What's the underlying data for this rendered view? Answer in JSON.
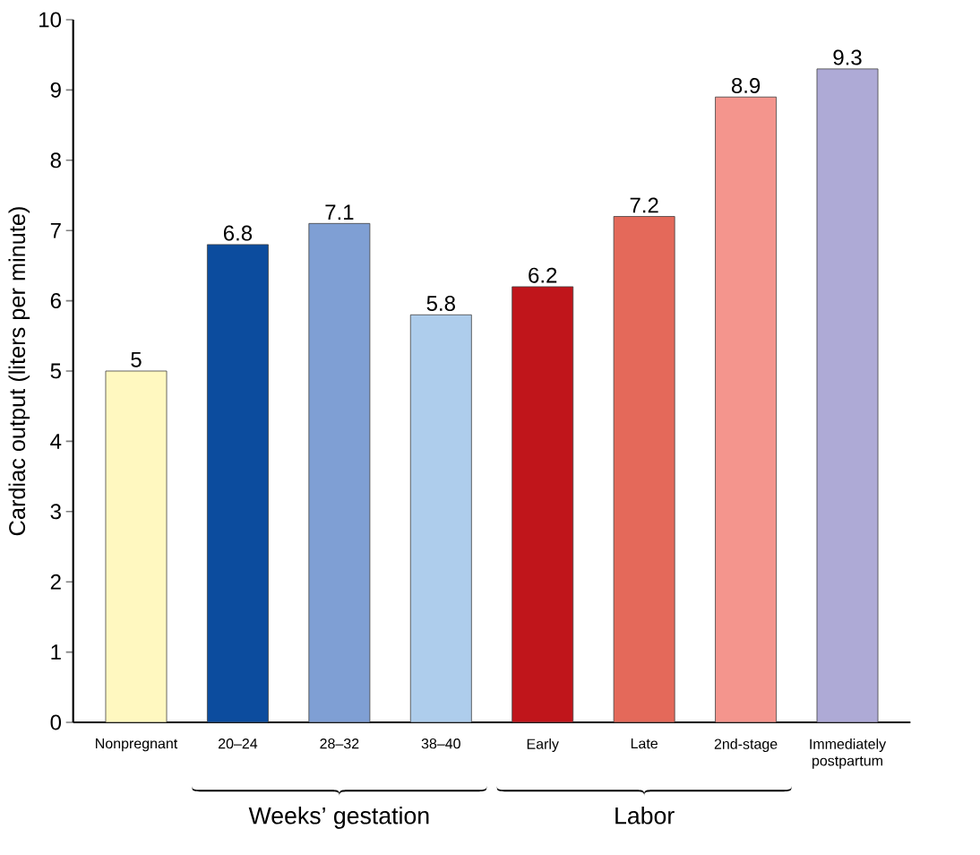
{
  "chart_data": {
    "type": "bar",
    "ylabel": "Cardiac output (liters per minute)",
    "categories": [
      "Nonpregnant",
      "20–24",
      "28–32",
      "38–40",
      "Early",
      "Late",
      "2nd-stage",
      "Immediately postpartum"
    ],
    "values": [
      5,
      6.8,
      7.1,
      5.8,
      6.2,
      7.2,
      8.9,
      9.3
    ],
    "colors": [
      "#fff8c0",
      "#0c4c9e",
      "#7f9fd4",
      "#aecdec",
      "#c0151b",
      "#e4695a",
      "#f4958d",
      "#aeaad6"
    ],
    "ylim": [
      0,
      10
    ],
    "yticks": [
      0,
      1,
      2,
      3,
      4,
      5,
      6,
      7,
      8,
      9,
      10
    ],
    "data_labels": true,
    "annotations": [
      "Weeks’ gestation",
      "Labor"
    ]
  }
}
